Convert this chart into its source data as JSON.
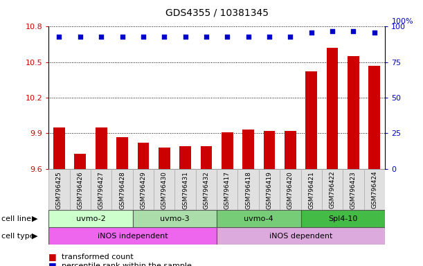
{
  "title": "GDS4355 / 10381345",
  "samples": [
    "GSM796425",
    "GSM796426",
    "GSM796427",
    "GSM796428",
    "GSM796429",
    "GSM796430",
    "GSM796431",
    "GSM796432",
    "GSM796417",
    "GSM796418",
    "GSM796419",
    "GSM796420",
    "GSM796421",
    "GSM796422",
    "GSM796423",
    "GSM796424"
  ],
  "transformed_counts": [
    9.95,
    9.73,
    9.95,
    9.87,
    9.82,
    9.78,
    9.79,
    9.79,
    9.91,
    9.93,
    9.92,
    9.92,
    10.42,
    10.62,
    10.55,
    10.47
  ],
  "percentile_ranks": [
    93,
    93,
    93,
    93,
    93,
    93,
    93,
    93,
    93,
    93,
    93,
    93,
    96,
    97,
    97,
    96
  ],
  "cell_lines": [
    {
      "label": "uvmo-2",
      "start": 0,
      "end": 3,
      "color": "#ccffcc"
    },
    {
      "label": "uvmo-3",
      "start": 4,
      "end": 7,
      "color": "#aaddaa"
    },
    {
      "label": "uvmo-4",
      "start": 8,
      "end": 11,
      "color": "#77cc77"
    },
    {
      "label": "Spl4-10",
      "start": 12,
      "end": 15,
      "color": "#44bb44"
    }
  ],
  "cell_types": [
    {
      "label": "iNOS independent",
      "start": 0,
      "end": 7,
      "color": "#ee66ee"
    },
    {
      "label": "iNOS dependent",
      "start": 8,
      "end": 15,
      "color": "#ddaadd"
    }
  ],
  "ylim_left": [
    9.6,
    10.8
  ],
  "ylim_right": [
    0,
    100
  ],
  "yticks_left": [
    9.6,
    9.9,
    10.2,
    10.5,
    10.8
  ],
  "yticks_right": [
    0,
    25,
    50,
    75,
    100
  ],
  "ymin": 9.6,
  "bar_color": "#cc0000",
  "dot_color": "#0000cc",
  "grid_color": "#000000",
  "tick_label_color_left": "#cc0000",
  "tick_label_color_right": "#0000cc"
}
